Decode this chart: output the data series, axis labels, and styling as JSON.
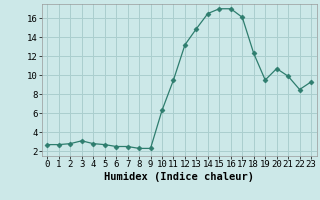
{
  "x": [
    0,
    1,
    2,
    3,
    4,
    5,
    6,
    7,
    8,
    9,
    10,
    11,
    12,
    13,
    14,
    15,
    16,
    17,
    18,
    19,
    20,
    21,
    22,
    23
  ],
  "y": [
    2.7,
    2.7,
    2.8,
    3.1,
    2.8,
    2.7,
    2.5,
    2.5,
    2.3,
    2.3,
    6.3,
    9.5,
    13.2,
    14.9,
    16.5,
    17.0,
    17.0,
    16.1,
    12.3,
    9.5,
    10.7,
    9.9,
    8.5,
    9.3
  ],
  "xlabel": "Humidex (Indice chaleur)",
  "xlim": [
    -0.5,
    23.5
  ],
  "ylim": [
    1.5,
    17.5
  ],
  "yticks": [
    2,
    4,
    6,
    8,
    10,
    12,
    14,
    16
  ],
  "xticks": [
    0,
    1,
    2,
    3,
    4,
    5,
    6,
    7,
    8,
    9,
    10,
    11,
    12,
    13,
    14,
    15,
    16,
    17,
    18,
    19,
    20,
    21,
    22,
    23
  ],
  "line_color": "#2e7d6e",
  "marker": "D",
  "marker_size": 2.5,
  "bg_color": "#cce8e8",
  "grid_color": "#aacece",
  "label_fontsize": 7.5,
  "tick_fontsize": 6.5
}
